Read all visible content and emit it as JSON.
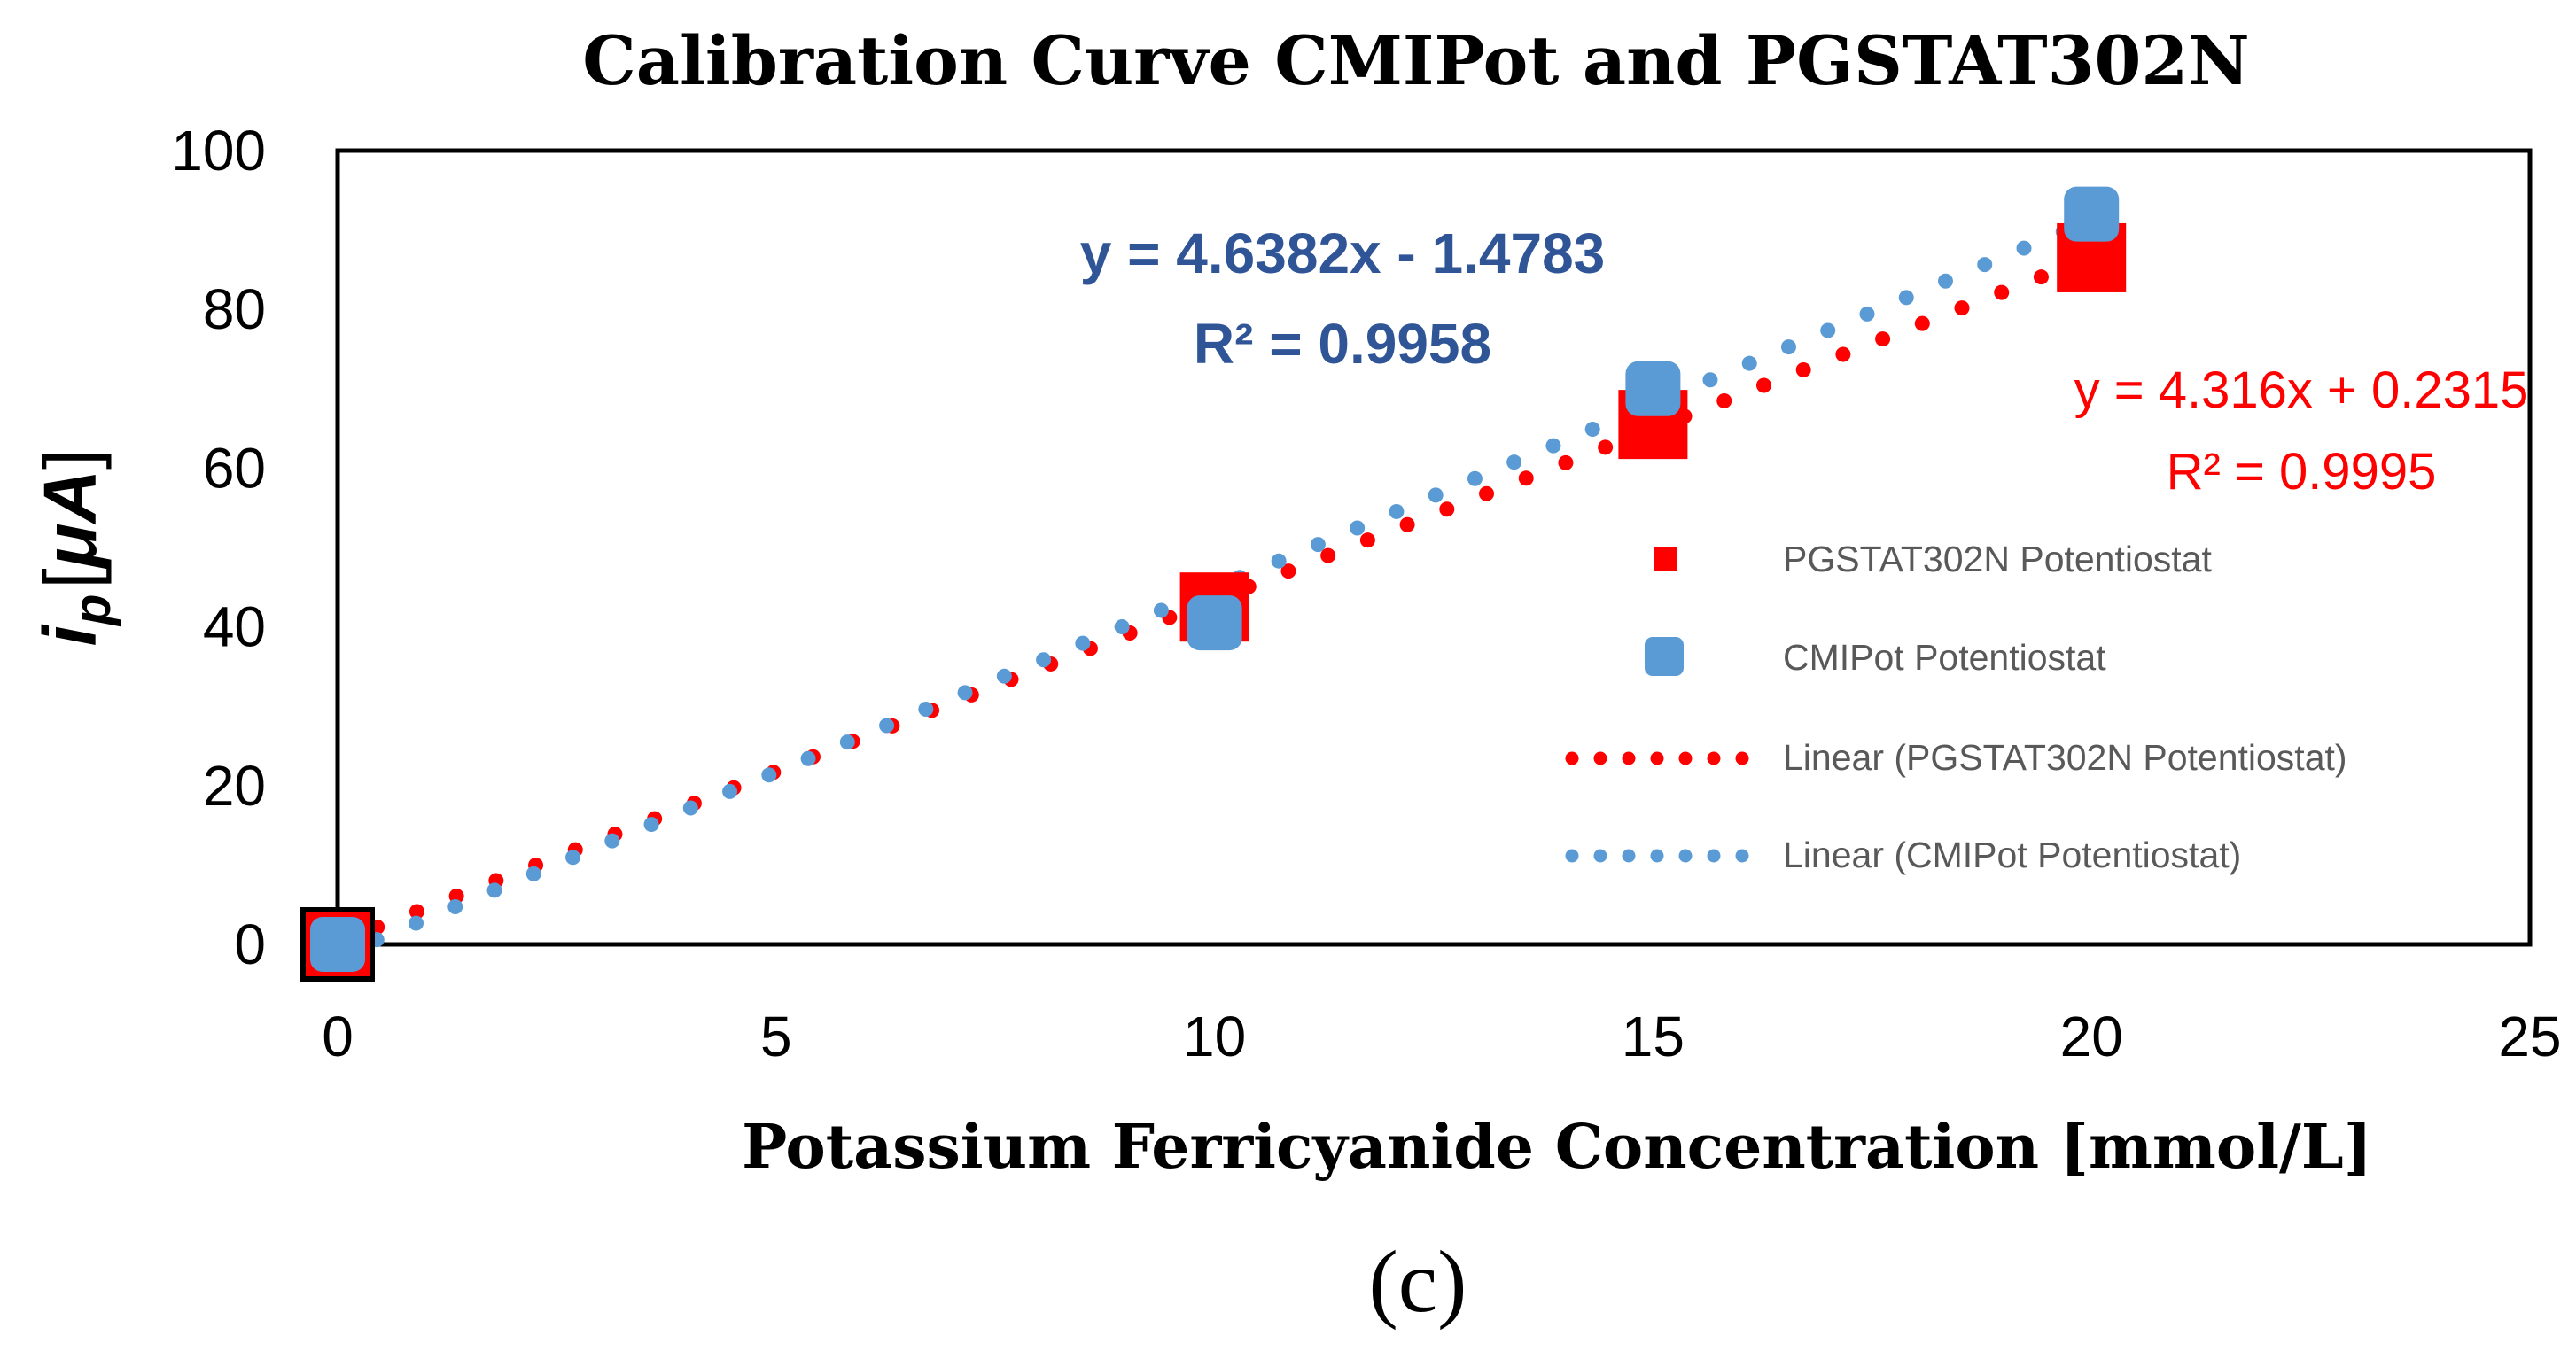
{
  "chart_data": {
    "type": "scatter",
    "title": "Calibration Curve CMIPot and PGSTAT302N",
    "xlabel": "Potassium Ferricyanide Concentration [mmol/L]",
    "ylabel": "i_p [μA]",
    "ylabel_parts": {
      "main": "i",
      "sub": "p",
      "bracket_open": "[",
      "unit": "μA",
      "bracket_close": "]"
    },
    "xlim": [
      0,
      25
    ],
    "ylim": [
      0,
      100
    ],
    "xticks": [
      "0",
      "5",
      "10",
      "15",
      "20",
      "25"
    ],
    "yticks": [
      "0",
      "20",
      "40",
      "60",
      "80",
      "100"
    ],
    "xtick_values": [
      0,
      5,
      10,
      15,
      20,
      25
    ],
    "ytick_values": [
      0,
      20,
      40,
      60,
      80,
      100
    ],
    "grid": false,
    "legend_position": "right",
    "series": [
      {
        "name": "PGSTAT302N Potentiostat",
        "marker": "square",
        "color": "#FF0000",
        "x": [
          0,
          10,
          15,
          20
        ],
        "y": [
          0,
          42.5,
          65.5,
          86.5
        ]
      },
      {
        "name": "CMIPot Potentiostat",
        "marker": "rounded-square",
        "color": "#5B9BD5",
        "x": [
          0,
          10,
          15,
          20
        ],
        "y": [
          0,
          40.5,
          70,
          92
        ]
      }
    ],
    "trendlines": [
      {
        "name": "Linear (PGSTAT302N Potentiostat)",
        "color": "#FF0000",
        "slope": 4.316,
        "intercept": 0.2315,
        "x_range": [
          0,
          20
        ],
        "equation": "y = 4.316x + 0.2315",
        "r2": "R² = 0.9995"
      },
      {
        "name": "Linear (CMIPot Potentiostat)",
        "color": "#5B9BD5",
        "slope": 4.6382,
        "intercept": -1.4783,
        "x_range": [
          0,
          20
        ],
        "equation": "y = 4.6382x - 1.4783",
        "r2": "R² = 0.9958"
      }
    ],
    "legend": [
      "PGSTAT302N Potentiostat",
      "CMIPot Potentiostat",
      "Linear (PGSTAT302N Potentiostat)",
      "Linear (CMIPot Potentiostat)"
    ]
  },
  "caption": "(c)"
}
